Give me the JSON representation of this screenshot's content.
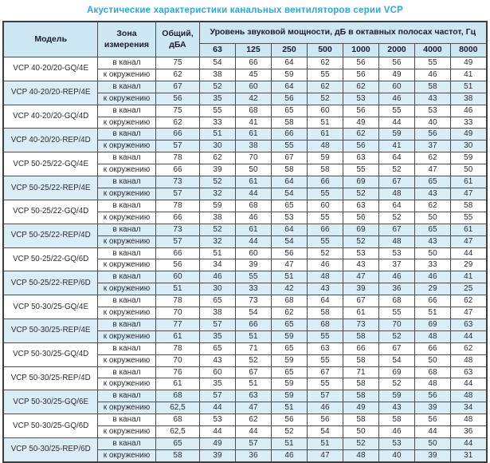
{
  "title": "Акустические характеристики канальных вентиляторов  серии VCP",
  "colors": {
    "accent": "#29a9e0",
    "header_bg": "#cde7f3",
    "row_highlight": "#daeef8",
    "border": "#4d4d4d"
  },
  "table": {
    "headers": {
      "model": "Модель",
      "zone": "Зона\nизмерения",
      "total": "Общий,\nдБА",
      "spl": "Уровень звуковой мощности, дБ в октавных полосах частот, Гц",
      "frequencies": [
        "63",
        "125",
        "250",
        "500",
        "1000",
        "2000",
        "4000",
        "8000"
      ]
    },
    "zone_labels": [
      "в канал",
      "к окружению"
    ],
    "rows": [
      {
        "model": "VCP 40-20/20-GQ/4E",
        "highlight": false,
        "in_duct": {
          "dba": "75",
          "values": [
            "54",
            "66",
            "64",
            "62",
            "56",
            "56",
            "55",
            "49"
          ]
        },
        "to_ambient": {
          "dba": "62",
          "values": [
            "38",
            "45",
            "59",
            "55",
            "56",
            "49",
            "46",
            "41"
          ]
        }
      },
      {
        "model": "VCP 40-20/20-REP/4E",
        "highlight": true,
        "in_duct": {
          "dba": "67",
          "values": [
            "52",
            "60",
            "64",
            "62",
            "62",
            "60",
            "58",
            "51"
          ]
        },
        "to_ambient": {
          "dba": "56",
          "values": [
            "35",
            "42",
            "56",
            "52",
            "53",
            "46",
            "43",
            "38"
          ]
        }
      },
      {
        "model": "VCP 40-20/20-GQ/4D",
        "highlight": false,
        "in_duct": {
          "dba": "75",
          "values": [
            "55",
            "68",
            "65",
            "60",
            "56",
            "55",
            "53",
            "46"
          ]
        },
        "to_ambient": {
          "dba": "62",
          "values": [
            "33",
            "41",
            "58",
            "51",
            "49",
            "44",
            "40",
            "33"
          ]
        }
      },
      {
        "model": "VCP 40-20/20-REP/4D",
        "highlight": true,
        "in_duct": {
          "dba": "66",
          "values": [
            "51",
            "61",
            "66",
            "61",
            "62",
            "59",
            "56",
            "49"
          ]
        },
        "to_ambient": {
          "dba": "57",
          "values": [
            "30",
            "38",
            "55",
            "48",
            "56",
            "41",
            "37",
            "30"
          ]
        }
      },
      {
        "model": "VCP 50-25/22-GQ/4E",
        "highlight": false,
        "in_duct": {
          "dba": "78",
          "values": [
            "62",
            "70",
            "67",
            "59",
            "63",
            "64",
            "62",
            "59"
          ]
        },
        "to_ambient": {
          "dba": "66",
          "values": [
            "39",
            "50",
            "58",
            "58",
            "55",
            "52",
            "47",
            "50"
          ]
        }
      },
      {
        "model": "VCP 50-25/22-REP/4E",
        "highlight": true,
        "in_duct": {
          "dba": "73",
          "values": [
            "52",
            "61",
            "64",
            "66",
            "69",
            "67",
            "65",
            "61"
          ]
        },
        "to_ambient": {
          "dba": "57",
          "values": [
            "32",
            "44",
            "54",
            "55",
            "52",
            "48",
            "43",
            "47"
          ]
        }
      },
      {
        "model": "VCP 50-25/22-GQ/4D",
        "highlight": false,
        "in_duct": {
          "dba": "78",
          "values": [
            "59",
            "68",
            "65",
            "60",
            "63",
            "64",
            "62",
            "58"
          ]
        },
        "to_ambient": {
          "dba": "66",
          "values": [
            "38",
            "46",
            "53",
            "55",
            "56",
            "52",
            "50",
            "55"
          ]
        }
      },
      {
        "model": "VCP 50-25/22-REP/4D",
        "highlight": true,
        "in_duct": {
          "dba": "73",
          "values": [
            "52",
            "61",
            "64",
            "66",
            "69",
            "67",
            "65",
            "61"
          ]
        },
        "to_ambient": {
          "dba": "57",
          "values": [
            "32",
            "44",
            "54",
            "55",
            "52",
            "48",
            "43",
            "47"
          ]
        }
      },
      {
        "model": "VCP 50-25/22-GQ/6D",
        "highlight": false,
        "in_duct": {
          "dba": "66",
          "values": [
            "51",
            "60",
            "56",
            "52",
            "53",
            "53",
            "50",
            "44"
          ]
        },
        "to_ambient": {
          "dba": "56",
          "values": [
            "34",
            "39",
            "47",
            "46",
            "43",
            "37",
            "33",
            "29"
          ]
        }
      },
      {
        "model": "VCP 50-25/22-REP/6D",
        "highlight": true,
        "in_duct": {
          "dba": "60",
          "values": [
            "46",
            "55",
            "51",
            "48",
            "47",
            "46",
            "46",
            "41"
          ]
        },
        "to_ambient": {
          "dba": "51",
          "values": [
            "30",
            "33",
            "42",
            "43",
            "39",
            "36",
            "29",
            "25"
          ]
        }
      },
      {
        "model": "VCP 50-30/25-GQ/4E",
        "highlight": false,
        "in_duct": {
          "dba": "78",
          "values": [
            "65",
            "73",
            "68",
            "64",
            "67",
            "68",
            "66",
            "62"
          ]
        },
        "to_ambient": {
          "dba": "70",
          "values": [
            "38",
            "54",
            "62",
            "58",
            "61",
            "55",
            "51",
            "47"
          ]
        }
      },
      {
        "model": "VCP 50-30/25-REP/4E",
        "highlight": true,
        "in_duct": {
          "dba": "77",
          "values": [
            "57",
            "66",
            "65",
            "68",
            "73",
            "70",
            "69",
            "63"
          ]
        },
        "to_ambient": {
          "dba": "61",
          "values": [
            "35",
            "51",
            "59",
            "55",
            "58",
            "52",
            "48",
            "44"
          ]
        }
      },
      {
        "model": "VCP 50-30/25-GQ/4D",
        "highlight": false,
        "in_duct": {
          "dba": "78",
          "values": [
            "65",
            "71",
            "65",
            "63",
            "66",
            "67",
            "66",
            "62"
          ]
        },
        "to_ambient": {
          "dba": "70",
          "values": [
            "43",
            "52",
            "59",
            "55",
            "58",
            "54",
            "50",
            "48"
          ]
        }
      },
      {
        "model": "VCP 50-30/25-REP/4D",
        "highlight": false,
        "in_duct": {
          "dba": "76",
          "values": [
            "60",
            "67",
            "65",
            "67",
            "71",
            "69",
            "68",
            "63"
          ]
        },
        "to_ambient": {
          "dba": "61",
          "values": [
            "35",
            "51",
            "59",
            "55",
            "58",
            "52",
            "48",
            "44"
          ]
        }
      },
      {
        "model": "VCP 50-30/25-GQ/6E",
        "highlight": true,
        "in_duct": {
          "dba": "68",
          "values": [
            "57",
            "63",
            "59",
            "57",
            "58",
            "59",
            "56",
            "48"
          ]
        },
        "to_ambient": {
          "dba": "62,5",
          "values": [
            "44",
            "47",
            "51",
            "46",
            "49",
            "43",
            "39",
            "34"
          ]
        }
      },
      {
        "model": "VCP 50-30/25-GQ/6D",
        "highlight": false,
        "in_duct": {
          "dba": "68",
          "values": [
            "53",
            "62",
            "56",
            "56",
            "58",
            "58",
            "56",
            "48"
          ]
        },
        "to_ambient": {
          "dba": "62,5",
          "values": [
            "44",
            "44",
            "52",
            "54",
            "50",
            "46",
            "44",
            "36"
          ]
        }
      },
      {
        "model": "VCP 50-30/25-REP/6D",
        "highlight": true,
        "in_duct": {
          "dba": "65",
          "values": [
            "49",
            "57",
            "51",
            "51",
            "52",
            "53",
            "50",
            "44"
          ]
        },
        "to_ambient": {
          "dba": "58",
          "values": [
            "39",
            "36",
            "46",
            "47",
            "48",
            "40",
            "39",
            "31"
          ]
        }
      }
    ]
  }
}
